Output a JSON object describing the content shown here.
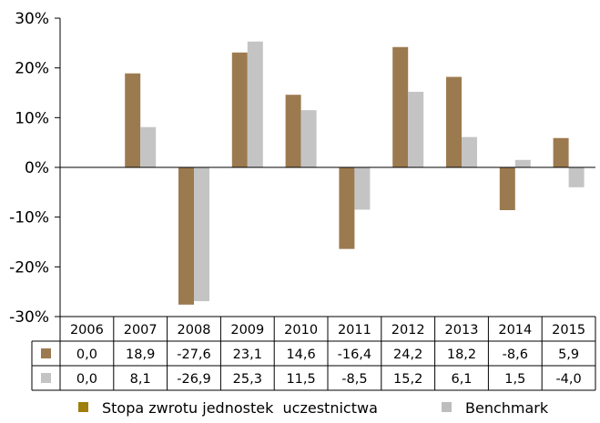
{
  "chart_data": {
    "type": "bar",
    "categories": [
      "2006",
      "2007",
      "2008",
      "2009",
      "2010",
      "2011",
      "2012",
      "2013",
      "2014",
      "2015"
    ],
    "series": [
      {
        "name": "Stopa zwrotu jednostek  uczestnictwa",
        "values": [
          0.0,
          18.9,
          -27.6,
          23.1,
          14.6,
          -16.4,
          24.2,
          18.2,
          -8.6,
          5.9
        ],
        "labels": [
          "0,0",
          "18,9",
          "-27,6",
          "23,1",
          "14,6",
          "-16,4",
          "24,2",
          "18,2",
          "-8,6",
          "5,9"
        ],
        "color": "#9C7A4F",
        "legend_color": "#A07E0C"
      },
      {
        "name": "Benchmark",
        "values": [
          0.0,
          8.1,
          -26.9,
          25.3,
          11.5,
          -8.5,
          15.2,
          6.1,
          1.5,
          -4.0
        ],
        "labels": [
          "0,0",
          "8,1",
          "-26,9",
          "25,3",
          "11,5",
          "-8,5",
          "15,2",
          "6,1",
          "1,5",
          "-4,0"
        ],
        "color": "#C4C4C4",
        "legend_color": "#BDBDBD"
      }
    ],
    "y_ticks": [
      "30%",
      "20%",
      "10%",
      "0%",
      "-10%",
      "-20%",
      "-30%"
    ],
    "ylim": [
      -30,
      30
    ],
    "grid": false,
    "data_table": true,
    "legend_position": "bottom"
  }
}
